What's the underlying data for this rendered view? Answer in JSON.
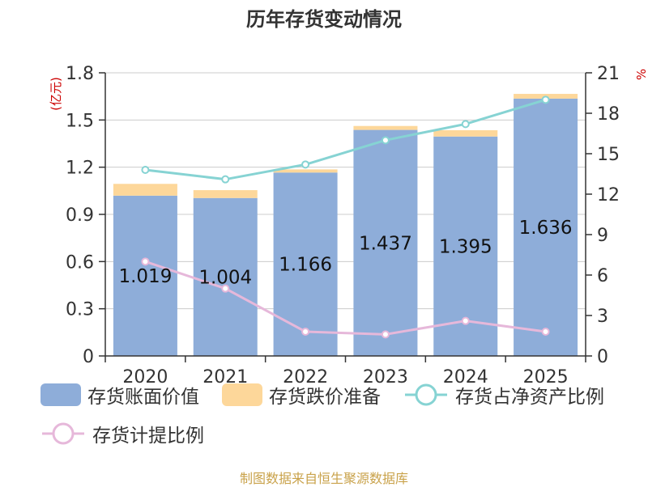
{
  "chart_data": {
    "type": "bar",
    "title": "历年存货变动情况",
    "categories": [
      "2020",
      "2021",
      "2022",
      "2023",
      "2024",
      "2025"
    ],
    "series": [
      {
        "name": "存货账面价值",
        "type": "bar",
        "axis": "left",
        "stack": "inventory",
        "values": [
          1.019,
          1.004,
          1.166,
          1.437,
          1.395,
          1.636
        ],
        "color": "#8eadd9"
      },
      {
        "name": "存货跌价准备",
        "type": "bar",
        "axis": "left",
        "stack": "inventory",
        "values": [
          0.075,
          0.05,
          0.02,
          0.025,
          0.04,
          0.03
        ],
        "color": "#fdd79a"
      },
      {
        "name": "存货占净资产比例",
        "type": "line",
        "axis": "right",
        "values": [
          13.8,
          13.1,
          14.2,
          16.0,
          17.2,
          19.0
        ],
        "color": "#86d3d3"
      },
      {
        "name": "存货计提比例",
        "type": "line",
        "axis": "right",
        "values": [
          7.0,
          5.0,
          1.8,
          1.6,
          2.6,
          1.8
        ],
        "color": "#e6b8da"
      }
    ],
    "data_labels": [
      "1.019",
      "1.004",
      "1.166",
      "1.437",
      "1.395",
      "1.636"
    ],
    "y_left": {
      "label": "(亿元)",
      "ylim": [
        0,
        1.8
      ],
      "ticks": [
        "0",
        "0.3",
        "0.6",
        "0.9",
        "1.2",
        "1.5",
        "1.8"
      ]
    },
    "y_right": {
      "label": "%",
      "ylim": [
        0,
        21
      ],
      "ticks": [
        "0",
        "3",
        "6",
        "9",
        "12",
        "15",
        "18",
        "21"
      ]
    },
    "grid": true,
    "legend_position": "bottom"
  },
  "legend": [
    "存货账面价值",
    "存货跌价准备",
    "存货占净资产比例",
    "存货计提比例"
  ],
  "source": "制图数据来自恒生聚源数据库"
}
